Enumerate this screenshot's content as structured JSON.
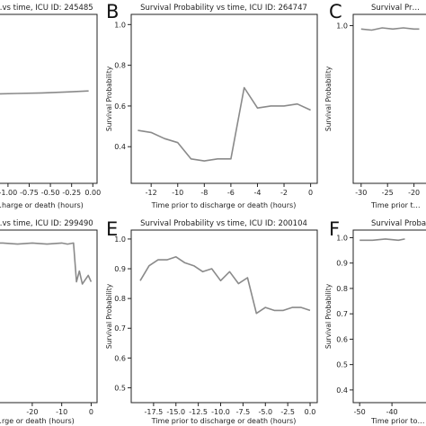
{
  "chart_data": [
    {
      "panel": "",
      "type": "line",
      "title": "…vs time, ICU ID: 245485",
      "xlabel": "…harge or death (hours)",
      "ylabel": "",
      "x_tick_labels": [
        "-1.00",
        "-0.75",
        "-0.50",
        "-0.25",
        "0.00"
      ],
      "y_ticks": [],
      "x": [
        -1.15,
        -0.9,
        -0.6,
        -0.3,
        -0.05
      ],
      "y": [
        0.65,
        0.652,
        0.655,
        0.66,
        0.665
      ]
    },
    {
      "panel": "B",
      "type": "line",
      "title": "Survival Probability vs time, ICU ID: 264747",
      "xlabel": "Time prior to discharge or death (hours)",
      "ylabel": "Survival Probability",
      "x_tick_labels": [
        "-12",
        "-10",
        "-8",
        "-6",
        "-4",
        "-2",
        "0"
      ],
      "y_ticks": [
        "0.4",
        "0.6",
        "0.8",
        "1.0"
      ],
      "x": [
        -13,
        -12,
        -11,
        -10,
        -9,
        -8,
        -7,
        -6,
        -5,
        -4,
        -3,
        -2,
        -1,
        0
      ],
      "y": [
        0.48,
        0.47,
        0.44,
        0.42,
        0.34,
        0.33,
        0.34,
        0.34,
        0.69,
        0.59,
        0.6,
        0.6,
        0.61,
        0.58
      ]
    },
    {
      "panel": "C",
      "type": "line",
      "title": "Survival Pr…",
      "xlabel": "Time prior t…",
      "ylabel": "Survival Probability",
      "x_tick_labels": [
        "-30",
        "-25",
        "-20"
      ],
      "y_ticks": [
        "1.0"
      ],
      "x": [
        -30,
        -28,
        -26,
        -24,
        -22,
        -20,
        -19
      ],
      "y": [
        0.985,
        0.98,
        0.99,
        0.985,
        0.99,
        0.985,
        0.985
      ]
    },
    {
      "panel": "",
      "type": "line",
      "title": "…vs time, ICU ID: 299490",
      "xlabel": "…rge or death (hours)",
      "ylabel": "",
      "x_tick_labels": [
        "-20",
        "-10",
        "0"
      ],
      "y_ticks": [],
      "x": [
        -35,
        -30,
        -25,
        -20,
        -15,
        -10,
        -8,
        -6,
        -5,
        -4,
        -3,
        -2,
        -1,
        0
      ],
      "y": [
        0.99,
        0.99,
        0.985,
        0.99,
        0.985,
        0.99,
        0.985,
        0.99,
        0.81,
        0.86,
        0.8,
        0.82,
        0.84,
        0.81
      ]
    },
    {
      "panel": "E",
      "type": "line",
      "title": "Survival Probability vs time, ICU ID: 200104",
      "xlabel": "Time prior to discharge or death (hours)",
      "ylabel": "Survival Probability",
      "x_tick_labels": [
        "-17.5",
        "-15.0",
        "-12.5",
        "-10.0",
        "-7.5",
        "-5.0",
        "-2.5",
        "0.0"
      ],
      "y_ticks": [
        "0.5",
        "0.6",
        "0.7",
        "0.8",
        "0.9",
        "1.0"
      ],
      "x": [
        -19,
        -18,
        -17,
        -16,
        -15,
        -14,
        -13,
        -12,
        -11,
        -10,
        -9,
        -8,
        -7,
        -6,
        -5,
        -4,
        -3,
        -2,
        -1,
        0
      ],
      "y": [
        0.86,
        0.91,
        0.93,
        0.93,
        0.94,
        0.92,
        0.91,
        0.89,
        0.9,
        0.86,
        0.89,
        0.85,
        0.87,
        0.75,
        0.77,
        0.76,
        0.76,
        0.77,
        0.77,
        0.76
      ]
    },
    {
      "panel": "F",
      "type": "line",
      "title": "Survival Probab…",
      "xlabel": "Time prior to…",
      "ylabel": "Survival Probability",
      "x_tick_labels": [
        "-50",
        "-40"
      ],
      "y_ticks": [
        "0.4",
        "0.5",
        "0.6",
        "0.7",
        "0.8",
        "0.9",
        "1.0"
      ],
      "x": [
        -50,
        -46,
        -42,
        -38,
        -36
      ],
      "y": [
        0.99,
        0.99,
        0.995,
        0.99,
        0.995
      ]
    }
  ]
}
